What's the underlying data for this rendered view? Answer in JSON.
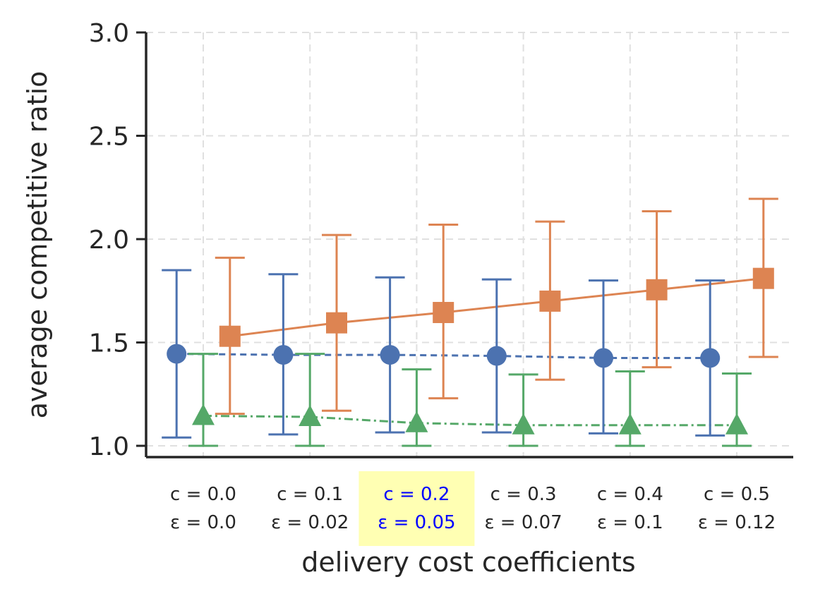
{
  "chart_data": {
    "type": "line",
    "xlabel": "delivery cost coefficients",
    "ylabel": "average competitive ratio",
    "ylim": [
      1.0,
      3.0
    ],
    "yticks": [
      "1.0",
      "1.5",
      "2.0",
      "2.5",
      "3.0"
    ],
    "grid": true,
    "highlighted_category_index": 2,
    "colors": {
      "highlight_bg": "#ffffb3",
      "highlight_text": "#0000ff",
      "axis": "#262626",
      "grid": "#e0e0e0"
    },
    "categories": [
      {
        "c": "c = 0.0",
        "eps": "ε = 0.0"
      },
      {
        "c": "c = 0.1",
        "eps": "ε = 0.02"
      },
      {
        "c": "c = 0.2",
        "eps": "ε = 0.05"
      },
      {
        "c": "c = 0.3",
        "eps": "ε = 0.07"
      },
      {
        "c": "c = 0.4",
        "eps": "ε = 0.1"
      },
      {
        "c": "c = 0.5",
        "eps": "ε = 0.12"
      }
    ],
    "series": [
      {
        "name": "blue-circle",
        "color": "#4c72b0",
        "marker": "circle",
        "line_style": "dashed",
        "offset": -0.25,
        "values": [
          1.445,
          1.44,
          1.44,
          1.435,
          1.425,
          1.425
        ],
        "err_low": [
          1.04,
          1.055,
          1.065,
          1.065,
          1.06,
          1.05
        ],
        "err_high": [
          1.85,
          1.83,
          1.815,
          1.805,
          1.8,
          1.8
        ]
      },
      {
        "name": "orange-square",
        "color": "#dd8452",
        "marker": "square",
        "line_style": "solid",
        "offset": 0.25,
        "values": [
          1.53,
          1.595,
          1.645,
          1.7,
          1.755,
          1.81
        ],
        "err_low": [
          1.155,
          1.17,
          1.23,
          1.32,
          1.38,
          1.43
        ],
        "err_high": [
          1.91,
          2.02,
          2.07,
          2.085,
          2.135,
          2.195
        ]
      },
      {
        "name": "green-triangle",
        "color": "#55a868",
        "marker": "triangle",
        "line_style": "dashdot",
        "offset": 0.0,
        "values": [
          1.145,
          1.14,
          1.11,
          1.1,
          1.1,
          1.1
        ],
        "err_low": [
          1.0,
          1.0,
          1.0,
          1.0,
          1.0,
          1.0
        ],
        "err_high": [
          1.445,
          1.445,
          1.37,
          1.345,
          1.36,
          1.35
        ]
      }
    ]
  }
}
